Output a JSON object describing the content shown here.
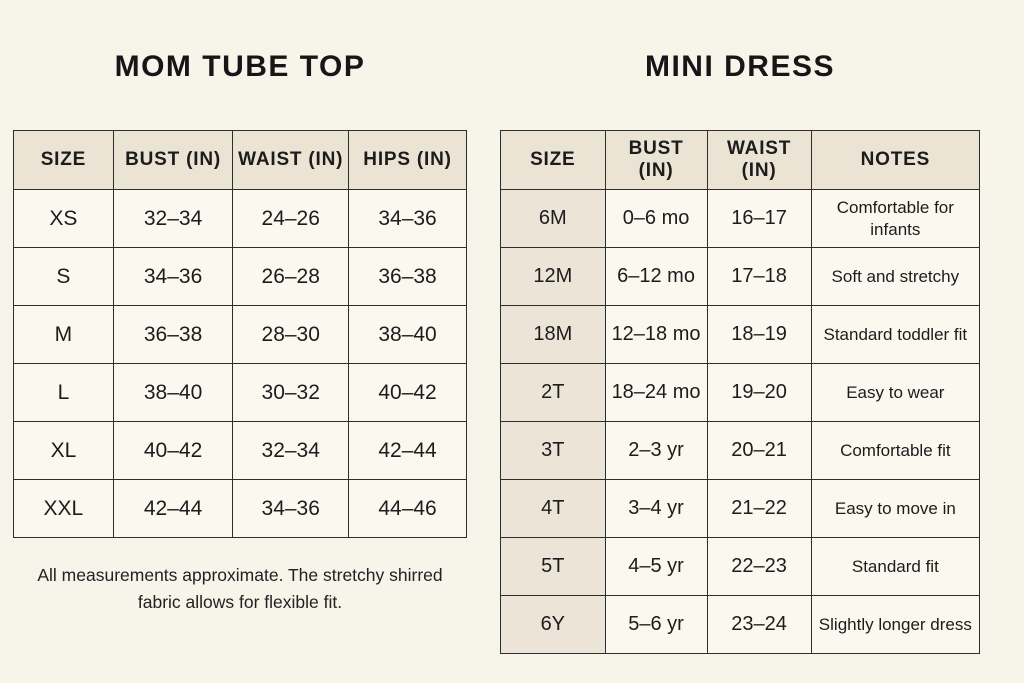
{
  "left_panel": {
    "title": "MOM TUBE TOP",
    "table": {
      "headers": [
        "SIZE",
        "BUST (IN)",
        "WAIST (IN)",
        "HIPS (IN)"
      ],
      "rows": [
        [
          "XS",
          "32–34",
          "24–26",
          "34–36"
        ],
        [
          "S",
          "34–36",
          "26–28",
          "36–38"
        ],
        [
          "M",
          "36–38",
          "28–30",
          "38–40"
        ],
        [
          "L",
          "38–40",
          "30–32",
          "40–42"
        ],
        [
          "XL",
          "40–42",
          "32–34",
          "42–44"
        ],
        [
          "XXL",
          "42–44",
          "34–36",
          "44–46"
        ]
      ]
    },
    "footnote": "All measurements approximate. The stretchy shirred fabric allows for flexible fit."
  },
  "right_panel": {
    "title": "MINI DRESS",
    "table": {
      "headers": [
        "SIZE",
        "BUST (IN)",
        "WAIST (IN)",
        "NOTES"
      ],
      "rows": [
        [
          "6M",
          "0–6 mo",
          "16–17",
          "Comfortable for infants"
        ],
        [
          "12M",
          "6–12 mo",
          "17–18",
          "Soft and stretchy"
        ],
        [
          "18M",
          "12–18 mo",
          "18–19",
          "Standard toddler fit"
        ],
        [
          "2T",
          "18–24 mo",
          "19–20",
          "Easy to wear"
        ],
        [
          "3T",
          "2–3 yr",
          "20–21",
          "Comfortable fit"
        ],
        [
          "4T",
          "3–4 yr",
          "21–22",
          "Easy to move in"
        ],
        [
          "5T",
          "4–5 yr",
          "22–23",
          "Standard fit"
        ],
        [
          "6Y",
          "5–6 yr",
          "23–24",
          "Slightly longer dress"
        ]
      ]
    }
  },
  "colors": {
    "background": "#f7f4ea",
    "header_bg": "#ebe4d5",
    "cell_bg": "#fbf8f0",
    "size_column_bg_right": "#ece5d7",
    "border": "#2e2e2e",
    "text": "#1c1c1c"
  }
}
